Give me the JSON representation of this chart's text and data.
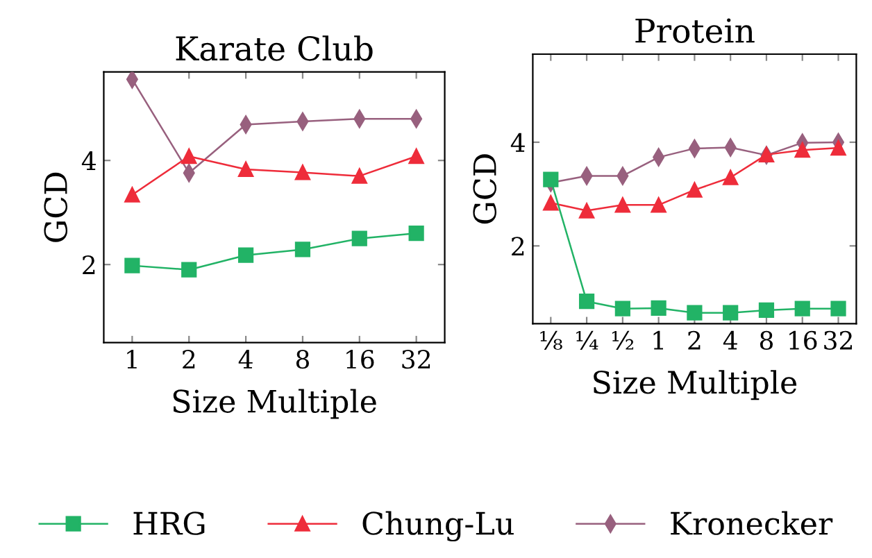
{
  "chart_data": [
    {
      "type": "line",
      "title": "Karate Club",
      "xlabel": "Size Multiple",
      "ylabel": "GCD",
      "categories": [
        "1",
        "2",
        "4",
        "8",
        "16",
        "32"
      ],
      "ylim": [
        0.5,
        5.7
      ],
      "yticks": [
        2,
        4
      ],
      "grid": false,
      "legend": "bottom",
      "series": [
        {
          "name": "HRG",
          "color": "#22b366",
          "marker": "square",
          "values": [
            1.98,
            1.9,
            2.18,
            2.29,
            2.5,
            2.6
          ]
        },
        {
          "name": "Chung-Lu",
          "color": "#ee2c3a",
          "marker": "triangle",
          "values": [
            3.34,
            4.08,
            3.83,
            3.77,
            3.7,
            4.08
          ]
        },
        {
          "name": "Kronecker",
          "color": "#98607e",
          "marker": "diamond",
          "values": [
            5.56,
            3.76,
            4.69,
            4.75,
            4.8,
            4.8
          ]
        }
      ]
    },
    {
      "type": "line",
      "title": "Protein",
      "xlabel": "Size Multiple",
      "ylabel": "GCD",
      "categories": [
        "⅛",
        "¼",
        "½",
        "1",
        "2",
        "4",
        "8",
        "16",
        "32"
      ],
      "ylim": [
        0.5,
        5.7
      ],
      "yticks": [
        2,
        4
      ],
      "grid": false,
      "series": [
        {
          "color": "#22b366",
          "marker": "square",
          "values": [
            3.28,
            0.93,
            0.79,
            0.8,
            0.71,
            0.71,
            0.76,
            0.79,
            0.79
          ]
        },
        {
          "color": "#ee2c3a",
          "marker": "triangle",
          "values": [
            2.83,
            2.68,
            2.79,
            2.79,
            3.08,
            3.32,
            3.76,
            3.85,
            3.89
          ]
        },
        {
          "color": "#98607e",
          "marker": "diamond",
          "values": [
            3.22,
            3.35,
            3.35,
            3.71,
            3.88,
            3.9,
            3.75,
            3.99,
            4.0
          ]
        }
      ]
    }
  ]
}
